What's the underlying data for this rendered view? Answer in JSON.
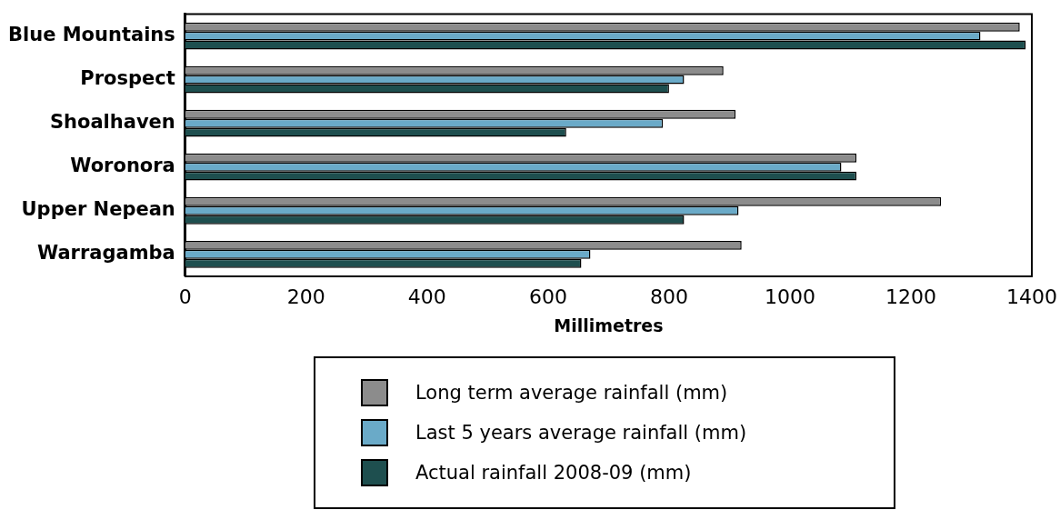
{
  "chart_data": {
    "type": "bar",
    "orientation": "horizontal",
    "xlabel": "Millimetres",
    "categories": [
      "Blue Mountains",
      "Prospect",
      "Shoalhaven",
      "Woronora",
      "Upper Nepean",
      "Warragamba"
    ],
    "series": [
      {
        "name": "Long term average rainfall (mm)",
        "color": "#8c8c8c",
        "values": [
          1380,
          890,
          910,
          1110,
          1250,
          920
        ]
      },
      {
        "name": "Last 5 years average rainfall (mm)",
        "color": "#6aaac8",
        "values": [
          1315,
          825,
          790,
          1085,
          915,
          670
        ]
      },
      {
        "name": "Actual rainfall 2008-09 (mm)",
        "color": "#1e4f4f",
        "values": [
          1390,
          800,
          630,
          1110,
          825,
          655
        ]
      }
    ],
    "xlim": [
      0,
      1400
    ],
    "xticks": [
      0,
      200,
      400,
      600,
      800,
      1000,
      1200,
      1400
    ],
    "grid": false,
    "legend": "bottom"
  }
}
